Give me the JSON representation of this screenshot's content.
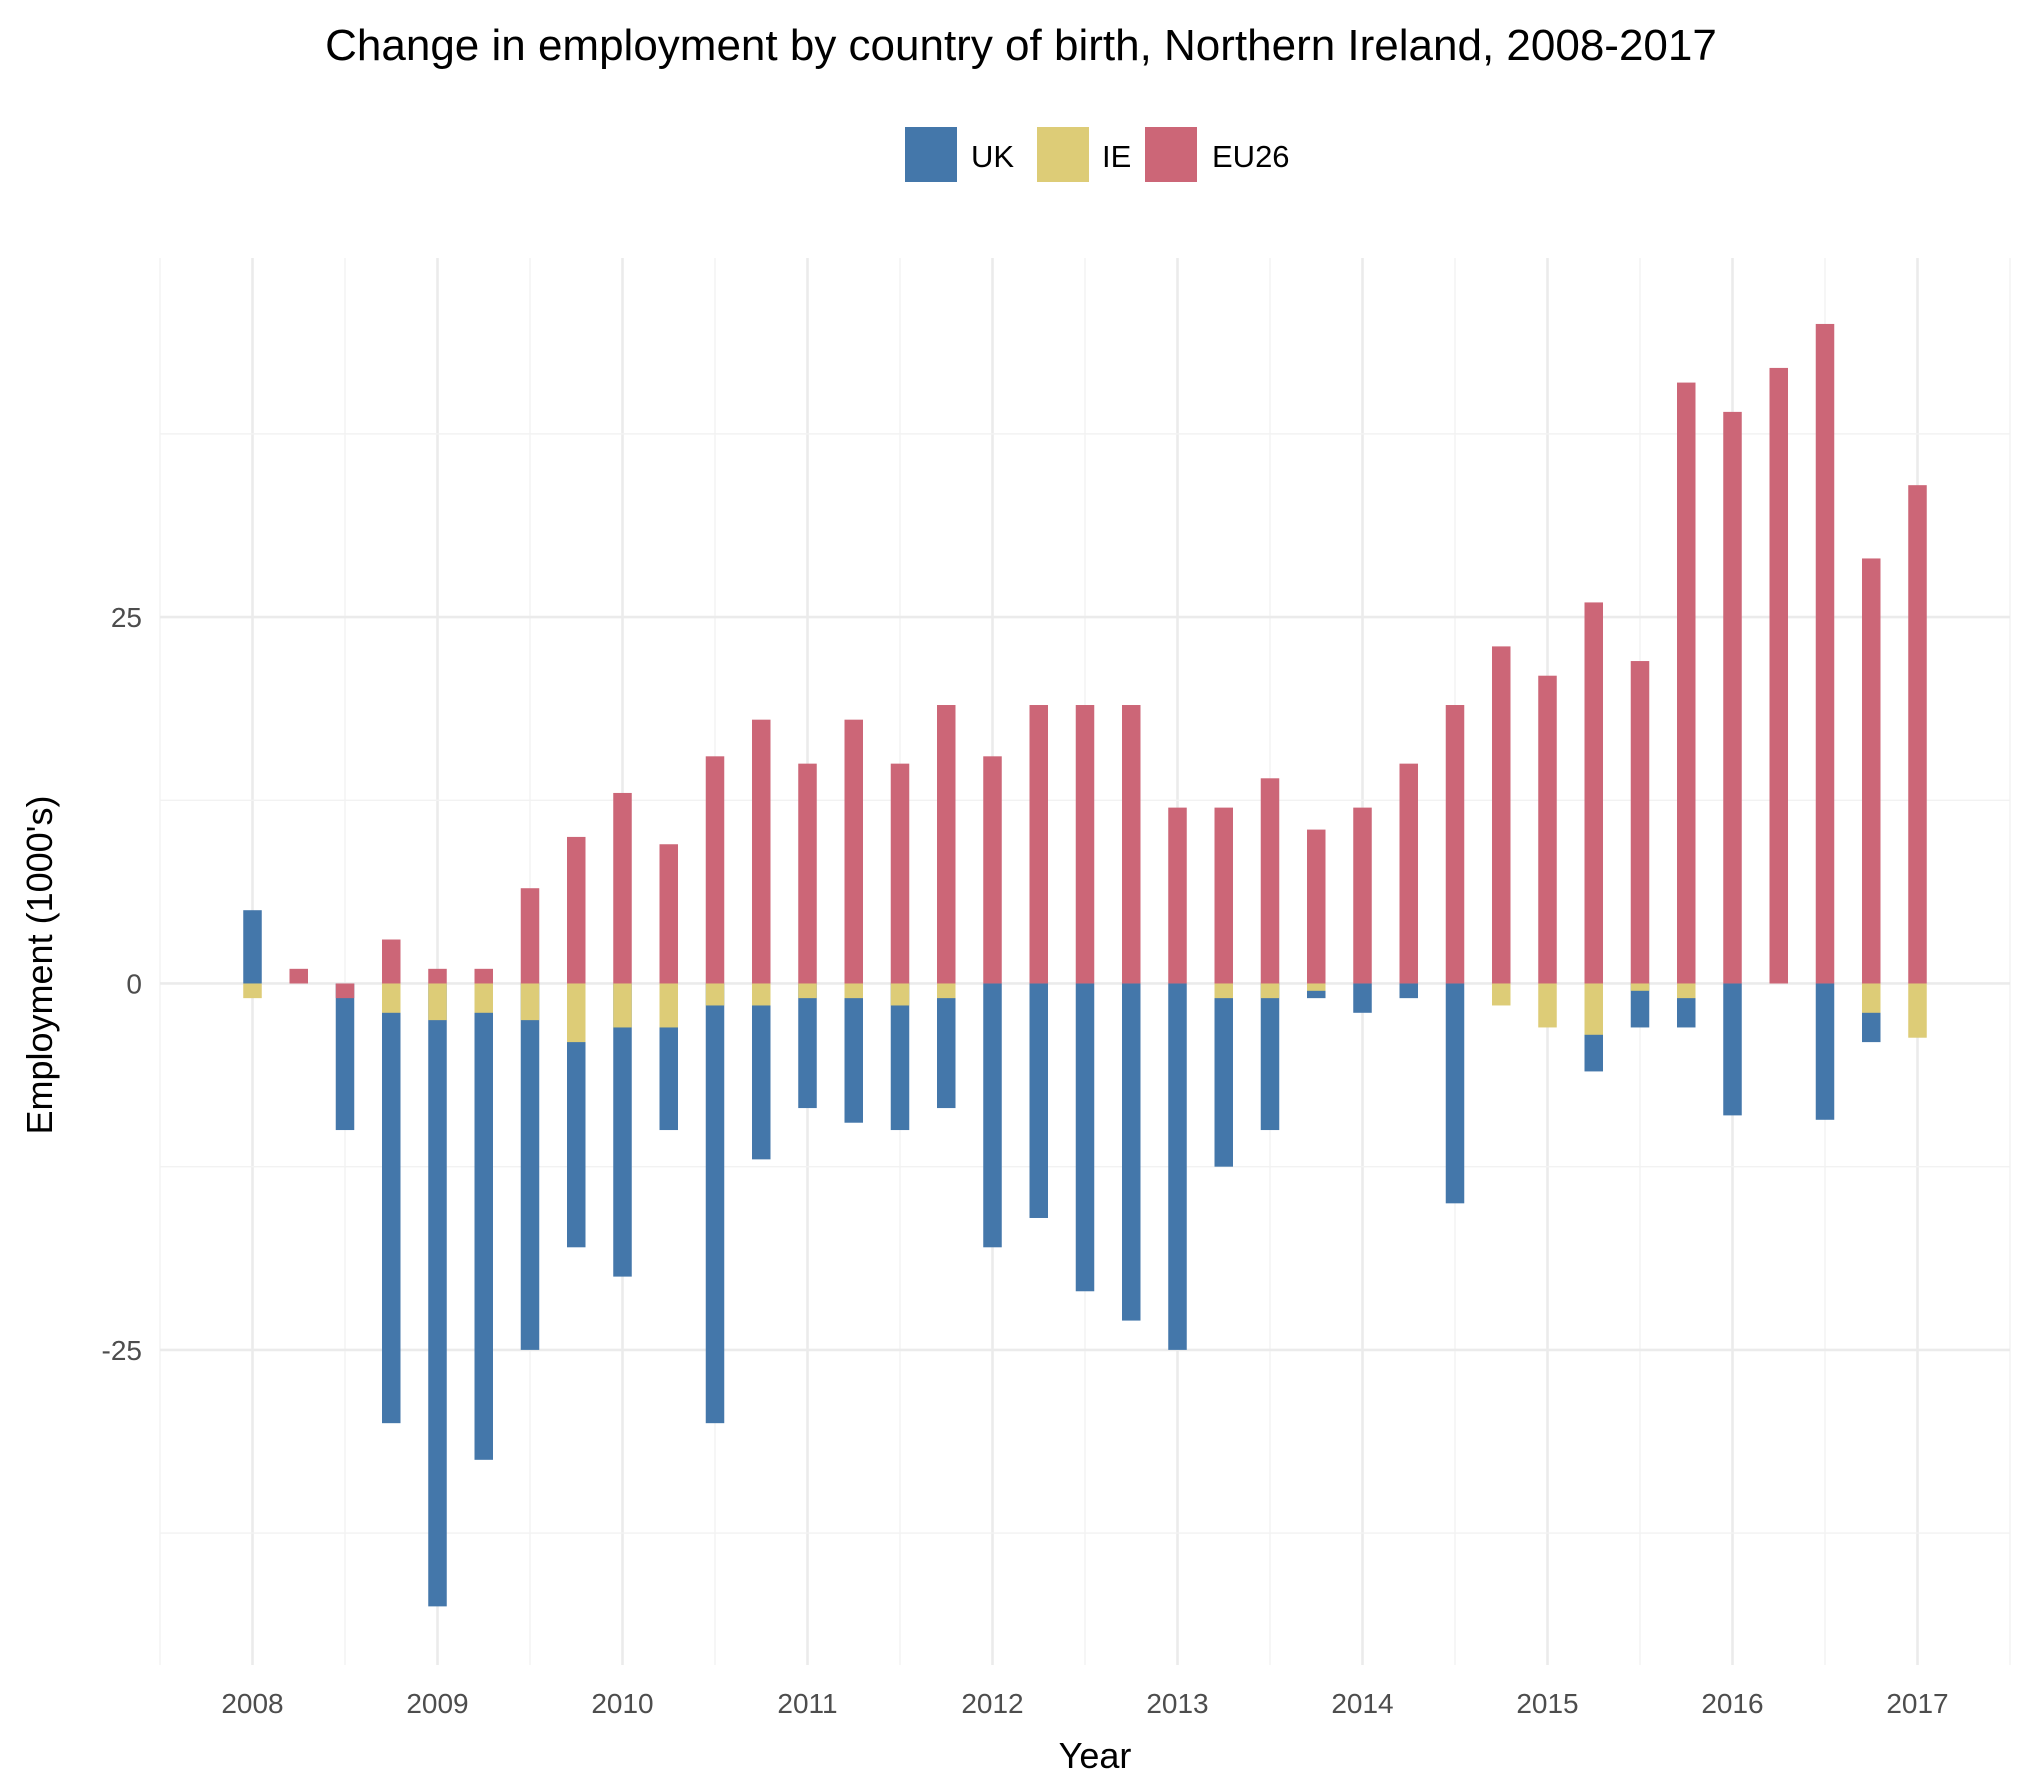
{
  "chart_data": {
    "type": "bar",
    "title": "Change in employment by country of birth, Northern Ireland, 2008-2017",
    "xlabel": "Year",
    "ylabel": "Employment (1000's)",
    "x_ticks": [
      2008,
      2009,
      2010,
      2011,
      2012,
      2013,
      2014,
      2015,
      2016,
      2017
    ],
    "y_ticks": [
      -25,
      0,
      25
    ],
    "ylim": [
      -46.5,
      49.5
    ],
    "xlim": [
      2007.5,
      2017.5
    ],
    "legend_position": "top",
    "grid": true,
    "bar_mode": "overlay",
    "x": [
      2008.0,
      2008.25,
      2008.5,
      2008.75,
      2009.0,
      2009.25,
      2009.5,
      2009.75,
      2010.0,
      2010.25,
      2010.5,
      2010.75,
      2011.0,
      2011.25,
      2011.5,
      2011.75,
      2012.0,
      2012.25,
      2012.5,
      2012.75,
      2013.0,
      2013.25,
      2013.5,
      2013.75,
      2014.0,
      2014.25,
      2014.5,
      2014.75,
      2015.0,
      2015.25,
      2015.5,
      2015.75,
      2016.0,
      2016.25,
      2016.5,
      2016.75,
      2017.0
    ],
    "series": [
      {
        "name": "UK",
        "color": "#4477aa",
        "values": [
          5,
          0,
          -10,
          -30,
          -42.5,
          -32.5,
          -25,
          -18,
          -20,
          -10,
          -30,
          -12,
          -8.5,
          -9.5,
          -10,
          -8.5,
          -18,
          -16,
          -21,
          -23,
          -25,
          -12.5,
          -10,
          -1,
          -2,
          -1,
          -15,
          0,
          0,
          -6,
          -3,
          -3,
          -9,
          0,
          -9.3,
          -4,
          0
        ]
      },
      {
        "name": "IE",
        "color": "#ddcc77",
        "values": [
          -1,
          0,
          0,
          -2,
          -2.5,
          -2,
          -2.5,
          -4,
          -3,
          -3,
          -1.5,
          -1.5,
          -1,
          -1,
          -1.5,
          -1,
          0,
          0,
          0,
          0,
          0,
          -1,
          -1,
          -0.5,
          0,
          0,
          0,
          -1.5,
          -3,
          -3.5,
          -0.5,
          -1,
          0,
          0,
          0,
          -2,
          -3.7
        ]
      },
      {
        "name": "EU26",
        "color": "#cc6677",
        "values": [
          0,
          1,
          -1,
          3,
          1,
          1,
          6.5,
          10,
          13,
          9.5,
          15.5,
          18,
          15,
          18,
          15,
          19,
          15.5,
          19,
          19,
          19,
          12,
          12,
          14,
          10.5,
          12,
          15,
          19,
          23,
          21,
          26,
          22,
          41,
          39,
          42,
          45,
          29,
          34
        ]
      }
    ]
  }
}
